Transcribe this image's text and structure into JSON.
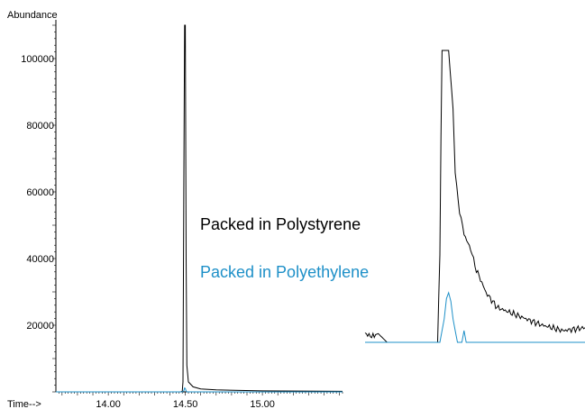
{
  "chart_data": [
    {
      "type": "line",
      "ylabel": "Abundance",
      "xlabel": "Time-->",
      "xlim": [
        13.66,
        15.52
      ],
      "ylim": [
        0,
        110000
      ],
      "x_ticks": [
        "14.00",
        "14.50",
        "15.00"
      ],
      "y_ticks": [
        "20000",
        "40000",
        "60000",
        "80000",
        "100000"
      ],
      "series": [
        {
          "color": "#000000",
          "x": [
            13.66,
            14.4,
            14.47,
            14.48,
            14.485,
            14.49,
            14.495,
            14.5,
            14.505,
            14.51,
            14.52,
            14.55,
            14.6,
            14.7,
            15.0,
            15.52
          ],
          "y": [
            0,
            0,
            0,
            200,
            3000,
            60000,
            110000,
            110000,
            40000,
            8000,
            3000,
            1500,
            900,
            600,
            300,
            150
          ]
        },
        {
          "color": "#1e90c8",
          "x": [
            13.66,
            14.48,
            14.49,
            14.495,
            14.5,
            14.505,
            14.51,
            15.52
          ],
          "y": [
            0,
            0,
            300,
            1200,
            1000,
            300,
            0,
            0
          ]
        }
      ]
    },
    {
      "type": "line",
      "series": [
        {
          "name": "Packed in Polystyrene",
          "color": "#000000",
          "x": [
            0,
            0.03,
            0.06,
            0.1,
            0.15,
            0.2,
            0.25,
            0.3,
            0.33,
            0.34,
            0.345,
            0.35,
            0.38,
            0.4,
            0.41,
            0.43,
            0.45,
            0.48,
            0.5,
            0.55,
            0.6,
            0.7,
            0.8,
            0.9,
            1.0
          ],
          "y": [
            0.03,
            0.02,
            0.03,
            0.0,
            0.0,
            0.0,
            0.0,
            0.0,
            0.0,
            0.3,
            0.7,
            1.0,
            1.0,
            0.8,
            0.58,
            0.45,
            0.37,
            0.32,
            0.26,
            0.17,
            0.12,
            0.09,
            0.06,
            0.04,
            0.05
          ]
        },
        {
          "name": "Packed in Polyethylene",
          "color": "#1e90c8",
          "x": [
            0,
            0.3,
            0.34,
            0.36,
            0.37,
            0.38,
            0.39,
            0.4,
            0.41,
            0.42,
            0.44,
            0.45,
            0.46,
            0.47,
            0.48,
            1.0
          ],
          "y": [
            0,
            0,
            0,
            0.08,
            0.15,
            0.17,
            0.14,
            0.08,
            0.04,
            0.0,
            0.0,
            0.04,
            0.0,
            0.0,
            0.0,
            0.0
          ]
        }
      ]
    }
  ]
}
